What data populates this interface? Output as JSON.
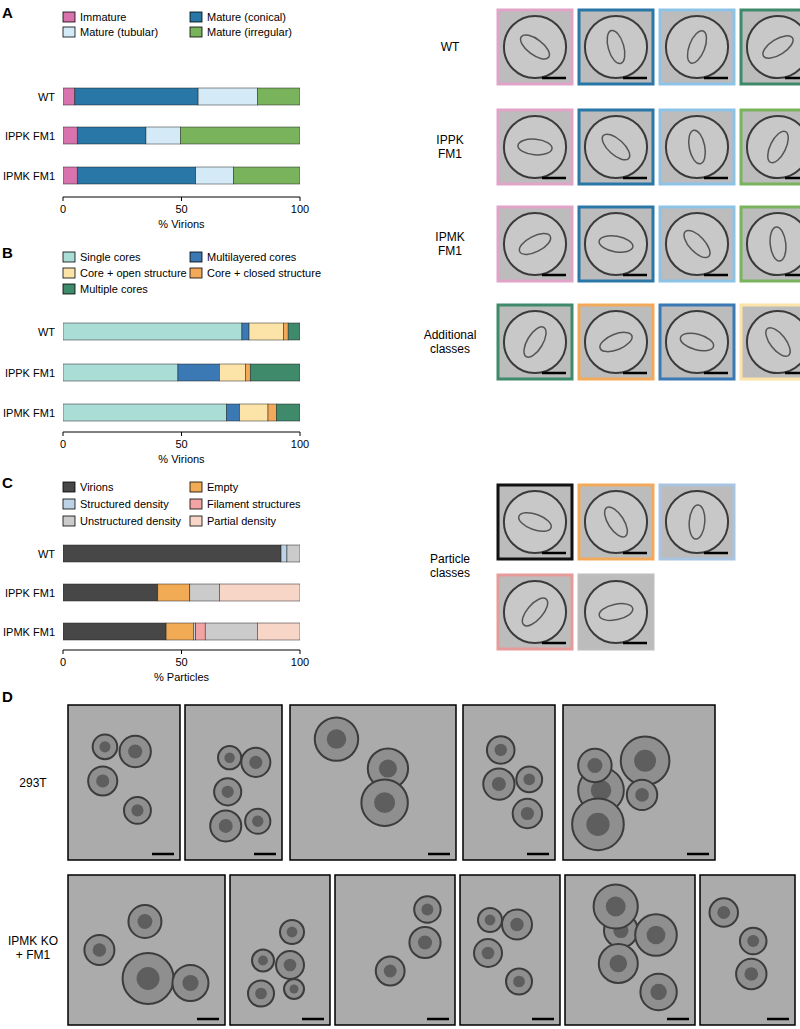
{
  "chart_data": [
    {
      "type": "bar",
      "orientation": "horizontal",
      "stacked": true,
      "categories": [
        "WT",
        "IPPK FM1",
        "IPMK FM1"
      ],
      "series": [
        {
          "name": "Immature",
          "color": "#d873ad",
          "values": [
            5,
            6,
            6
          ]
        },
        {
          "name": "Mature (conical)",
          "color": "#2877a6",
          "values": [
            52,
            29,
            50
          ]
        },
        {
          "name": "Mature (tubular)",
          "color": "#d4ebf7",
          "values": [
            25,
            14.5,
            16
          ]
        },
        {
          "name": "Mature (irregular)",
          "color": "#79b35c",
          "values": [
            18,
            50.5,
            28
          ]
        }
      ],
      "xlim": [
        0,
        100
      ],
      "xticks": [
        0,
        50,
        100
      ],
      "xlabel": "% Virions"
    },
    {
      "type": "bar",
      "orientation": "horizontal",
      "stacked": true,
      "categories": [
        "WT",
        "IPPK FM1",
        "IPMK FM1"
      ],
      "series": [
        {
          "name": "Single cores",
          "color": "#a9ddd6",
          "values": [
            75.5,
            48.5,
            69
          ]
        },
        {
          "name": "Multilayered cores",
          "color": "#3b79b4",
          "values": [
            3,
            17.5,
            5.5
          ]
        },
        {
          "name": "Core + open structure",
          "color": "#fce4a8",
          "values": [
            14.5,
            11,
            12
          ]
        },
        {
          "name": "Core + closed structure",
          "color": "#f3a95a",
          "values": [
            2,
            2,
            3.5
          ]
        },
        {
          "name": "Multiple cores",
          "color": "#3e8a6b",
          "values": [
            5,
            21,
            10
          ]
        }
      ],
      "xlim": [
        0,
        100
      ],
      "xticks": [
        0,
        50,
        100
      ],
      "xlabel": "% Virions"
    },
    {
      "type": "bar",
      "orientation": "horizontal",
      "stacked": true,
      "categories": [
        "WT",
        "IPPK FM1",
        "IPMK FM1"
      ],
      "series": [
        {
          "name": "Virions",
          "color": "#474747",
          "values": [
            92,
            40,
            43.5
          ]
        },
        {
          "name": "Empty",
          "color": "#f2ab55",
          "values": [
            0,
            13.5,
            11.5
          ]
        },
        {
          "name": "Structured density",
          "color": "#bdd2e6",
          "values": [
            2.5,
            0,
            1
          ]
        },
        {
          "name": "Filament structures",
          "color": "#f2a3a3",
          "values": [
            0,
            0,
            4
          ]
        },
        {
          "name": "Unstructured density",
          "color": "#cbcbcb",
          "values": [
            5.5,
            12.5,
            22
          ]
        },
        {
          "name": "Partial density",
          "color": "#f7d5c7",
          "values": [
            0,
            34,
            18
          ]
        }
      ],
      "xlim": [
        0,
        100
      ],
      "xticks": [
        0,
        50,
        100
      ],
      "xlabel": "% Particles"
    }
  ],
  "panel_labels": [
    "A",
    "B",
    "C",
    "D"
  ],
  "image_rows": {
    "a": [
      "WT",
      "IPPK FM1",
      "IPMK FM1",
      "Additional classes"
    ],
    "c": [
      "Particle classes"
    ],
    "d": [
      "293T",
      "IPMK KO + FM1"
    ]
  }
}
